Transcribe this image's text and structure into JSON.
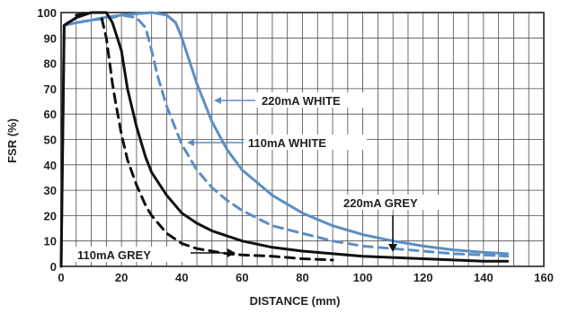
{
  "chart_data": {
    "type": "line",
    "xlabel": "DISTANCE (mm)",
    "ylabel": "FSR (%)",
    "xlim": [
      0,
      160
    ],
    "ylim": [
      0,
      100
    ],
    "xticks": [
      "0",
      "20",
      "40",
      "60",
      "80",
      "100",
      "120",
      "140",
      "160"
    ],
    "yticks": [
      "0",
      "10",
      "20",
      "30",
      "40",
      "50",
      "60",
      "70",
      "80",
      "90",
      "100"
    ],
    "grid": true,
    "series": [
      {
        "name": "220mA WHITE",
        "color": "#5b8ec4",
        "style": "solid",
        "x": [
          0,
          1,
          5,
          10,
          14,
          20,
          30,
          35,
          38,
          40,
          45,
          50,
          55,
          60,
          70,
          80,
          90,
          100,
          110,
          120,
          130,
          140,
          148
        ],
        "y": [
          0,
          95,
          96,
          97,
          98,
          99,
          100,
          99,
          96,
          90,
          72,
          57,
          46,
          38,
          28,
          21,
          16,
          12.5,
          10,
          8,
          6.5,
          5.5,
          5
        ]
      },
      {
        "name": "110mA WHITE",
        "color": "#5b8ec4",
        "style": "dashed",
        "x": [
          1,
          5,
          10,
          17,
          20,
          25,
          28,
          30,
          32,
          35,
          40,
          45,
          50,
          55,
          60,
          70,
          80,
          90,
          100,
          110,
          120,
          130,
          140,
          148
        ],
        "y": [
          95,
          96,
          97,
          98,
          99,
          98,
          94,
          85,
          75,
          63,
          48,
          38,
          31,
          26,
          22,
          16,
          13,
          10,
          8,
          7,
          6,
          5,
          4.5,
          4
        ]
      },
      {
        "name": "220mA GREY",
        "color": "#111111",
        "style": "solid",
        "x": [
          0,
          1,
          5,
          10,
          15,
          17,
          20,
          22,
          25,
          28,
          30,
          35,
          40,
          45,
          50,
          60,
          70,
          80,
          90,
          100,
          110,
          120,
          130,
          140,
          148
        ],
        "y": [
          0,
          95,
          98,
          100,
          100,
          96,
          85,
          70,
          55,
          43,
          37,
          28,
          21,
          17,
          14,
          10,
          7.5,
          6,
          5,
          4,
          3.5,
          3,
          2.5,
          2,
          2
        ]
      },
      {
        "name": "110mA GREY",
        "color": "#111111",
        "style": "dashed",
        "x": [
          5,
          10,
          13,
          15,
          17,
          18,
          20,
          22,
          25,
          28,
          30,
          35,
          40,
          45,
          50,
          55,
          60,
          70,
          80,
          90
        ],
        "y": [
          99,
          100,
          100,
          90,
          72,
          65,
          52,
          42,
          32,
          24,
          20,
          13,
          9,
          7,
          6,
          5,
          4.5,
          4,
          3,
          2.5
        ]
      }
    ],
    "annotations": [
      "220mA WHITE",
      "110mA WHITE",
      "220mA GREY",
      "110mA GREY"
    ]
  }
}
